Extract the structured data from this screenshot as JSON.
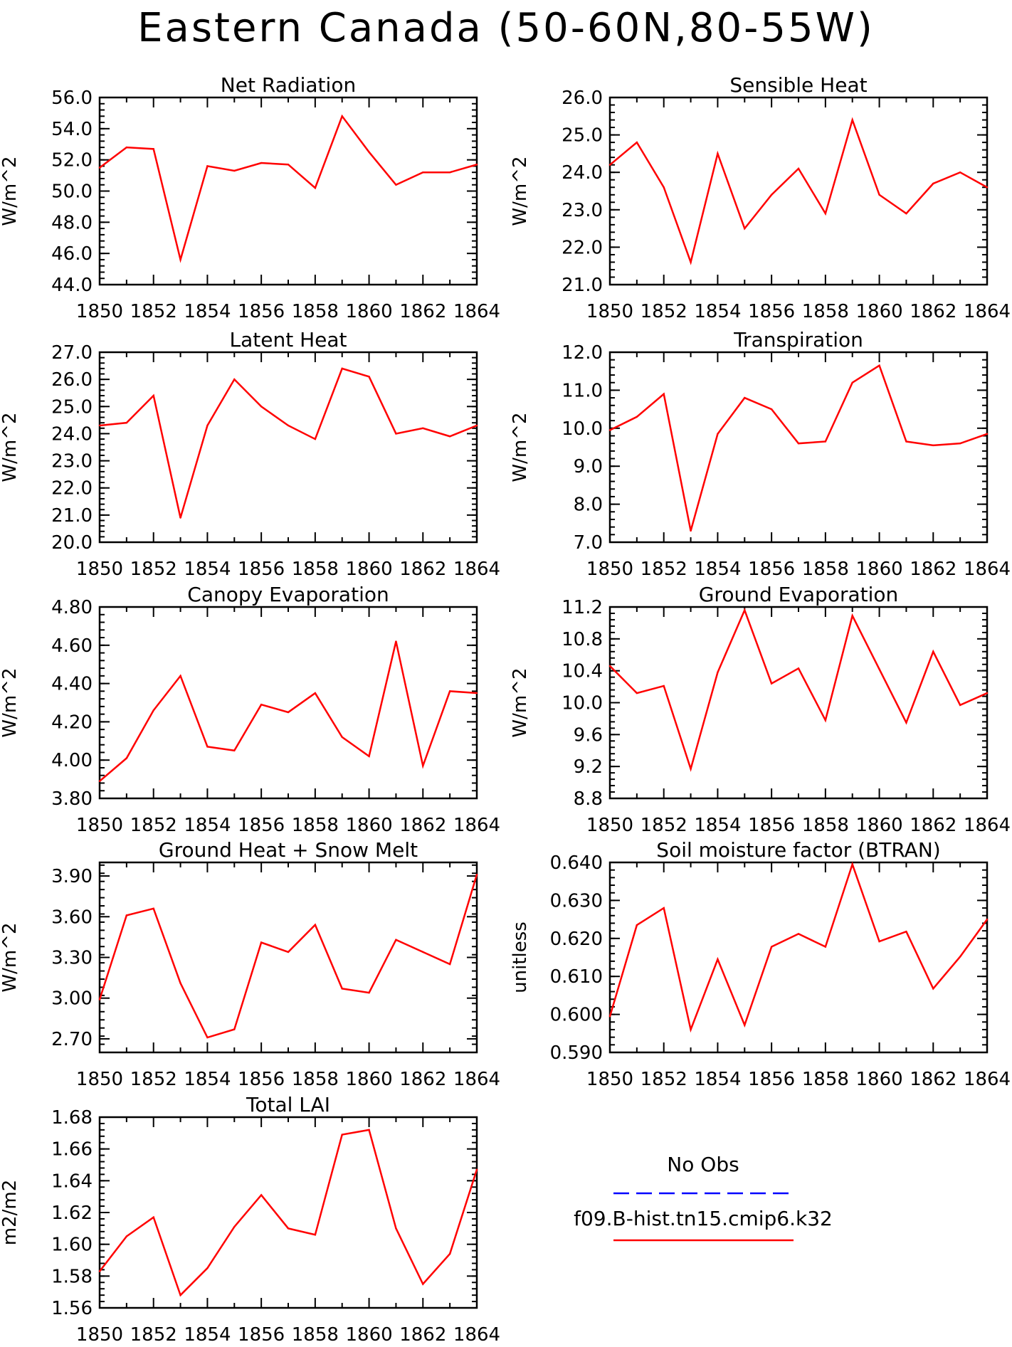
{
  "title": "Eastern Canada (50-60N,80-55W)",
  "legend": {
    "obs_label": "No Obs",
    "model_label": "f09.B-hist.tn15.cmip6.k32",
    "obs_color": "#0000ff",
    "model_color": "#ff0000"
  },
  "chart_data": [
    {
      "type": "line",
      "title": "Net Radiation",
      "ylabel": "W/m^2",
      "x": [
        1850,
        1851,
        1852,
        1853,
        1854,
        1855,
        1856,
        1857,
        1858,
        1859,
        1860,
        1861,
        1862,
        1863,
        1864
      ],
      "series": [
        {
          "name": "f09.B-hist.tn15.cmip6.k32",
          "color": "#ff0000",
          "values": [
            51.5,
            52.8,
            52.7,
            45.6,
            51.6,
            51.3,
            51.8,
            51.7,
            50.2,
            54.8,
            52.5,
            50.4,
            51.2,
            51.2,
            51.7
          ]
        }
      ],
      "xlim": [
        1850,
        1864
      ],
      "ylim": [
        44.0,
        56.0
      ],
      "yticks": [
        "44.0",
        "46.0",
        "48.0",
        "50.0",
        "52.0",
        "54.0",
        "56.0"
      ],
      "xticks": [
        "1850",
        "1852",
        "1854",
        "1856",
        "1858",
        "1860",
        "1862",
        "1864"
      ],
      "grid": false
    },
    {
      "type": "line",
      "title": "Sensible Heat",
      "ylabel": "W/m^2",
      "x": [
        1850,
        1851,
        1852,
        1853,
        1854,
        1855,
        1856,
        1857,
        1858,
        1859,
        1860,
        1861,
        1862,
        1863,
        1864
      ],
      "series": [
        {
          "name": "f09.B-hist.tn15.cmip6.k32",
          "color": "#ff0000",
          "values": [
            24.2,
            24.8,
            23.6,
            21.6,
            24.5,
            22.5,
            23.4,
            24.1,
            22.9,
            25.4,
            23.4,
            22.9,
            23.7,
            24.0,
            23.6
          ]
        }
      ],
      "xlim": [
        1850,
        1864
      ],
      "ylim": [
        21.0,
        26.0
      ],
      "yticks": [
        "21.0",
        "22.0",
        "23.0",
        "24.0",
        "25.0",
        "26.0"
      ],
      "xticks": [
        "1850",
        "1852",
        "1854",
        "1856",
        "1858",
        "1860",
        "1862",
        "1864"
      ],
      "grid": false
    },
    {
      "type": "line",
      "title": "Latent Heat",
      "ylabel": "W/m^2",
      "x": [
        1850,
        1851,
        1852,
        1853,
        1854,
        1855,
        1856,
        1857,
        1858,
        1859,
        1860,
        1861,
        1862,
        1863,
        1864
      ],
      "series": [
        {
          "name": "f09.B-hist.tn15.cmip6.k32",
          "color": "#ff0000",
          "values": [
            24.3,
            24.4,
            25.4,
            20.9,
            24.3,
            26.0,
            25.0,
            24.3,
            23.8,
            26.4,
            26.1,
            24.0,
            24.2,
            23.9,
            24.3
          ]
        }
      ],
      "xlim": [
        1850,
        1864
      ],
      "ylim": [
        20.0,
        27.0
      ],
      "yticks": [
        "20.0",
        "21.0",
        "22.0",
        "23.0",
        "24.0",
        "25.0",
        "26.0",
        "27.0"
      ],
      "xticks": [
        "1850",
        "1852",
        "1854",
        "1856",
        "1858",
        "1860",
        "1862",
        "1864"
      ],
      "grid": false
    },
    {
      "type": "line",
      "title": "Transpiration",
      "ylabel": "W/m^2",
      "x": [
        1850,
        1851,
        1852,
        1853,
        1854,
        1855,
        1856,
        1857,
        1858,
        1859,
        1860,
        1861,
        1862,
        1863,
        1864
      ],
      "series": [
        {
          "name": "f09.B-hist.tn15.cmip6.k32",
          "color": "#ff0000",
          "values": [
            9.95,
            10.3,
            10.9,
            7.3,
            9.85,
            10.8,
            10.5,
            9.6,
            9.65,
            11.2,
            11.65,
            9.65,
            9.55,
            9.6,
            9.85
          ]
        }
      ],
      "xlim": [
        1850,
        1864
      ],
      "ylim": [
        7.0,
        12.0
      ],
      "yticks": [
        "7.0",
        "8.0",
        "9.0",
        "10.0",
        "11.0",
        "12.0"
      ],
      "xticks": [
        "1850",
        "1852",
        "1854",
        "1856",
        "1858",
        "1860",
        "1862",
        "1864"
      ],
      "grid": false
    },
    {
      "type": "line",
      "title": "Canopy Evaporation",
      "ylabel": "W/m^2",
      "x": [
        1850,
        1851,
        1852,
        1853,
        1854,
        1855,
        1856,
        1857,
        1858,
        1859,
        1860,
        1861,
        1862,
        1863,
        1864
      ],
      "series": [
        {
          "name": "f09.B-hist.tn15.cmip6.k32",
          "color": "#ff0000",
          "values": [
            3.89,
            4.01,
            4.26,
            4.44,
            4.07,
            4.05,
            4.29,
            4.25,
            4.35,
            4.12,
            4.02,
            4.62,
            3.97,
            4.36,
            4.35
          ]
        }
      ],
      "xlim": [
        1850,
        1864
      ],
      "ylim": [
        3.8,
        4.8
      ],
      "yticks": [
        "3.80",
        "4.00",
        "4.20",
        "4.40",
        "4.60",
        "4.80"
      ],
      "xticks": [
        "1850",
        "1852",
        "1854",
        "1856",
        "1858",
        "1860",
        "1862",
        "1864"
      ],
      "grid": false
    },
    {
      "type": "line",
      "title": "Ground Evaporation",
      "ylabel": "W/m^2",
      "x": [
        1850,
        1851,
        1852,
        1853,
        1854,
        1855,
        1856,
        1857,
        1858,
        1859,
        1860,
        1861,
        1862,
        1863,
        1864
      ],
      "series": [
        {
          "name": "f09.B-hist.tn15.cmip6.k32",
          "color": "#ff0000",
          "values": [
            10.46,
            10.12,
            10.21,
            9.17,
            10.38,
            11.16,
            10.24,
            10.43,
            9.78,
            11.09,
            10.42,
            9.75,
            10.64,
            9.97,
            10.12
          ]
        }
      ],
      "xlim": [
        1850,
        1864
      ],
      "ylim": [
        8.8,
        11.2
      ],
      "yticks": [
        "8.8",
        "9.2",
        "9.6",
        "10.0",
        "10.4",
        "10.8",
        "11.2"
      ],
      "xticks": [
        "1850",
        "1852",
        "1854",
        "1856",
        "1858",
        "1860",
        "1862",
        "1864"
      ],
      "grid": false
    },
    {
      "type": "line",
      "title": "Ground Heat + Snow Melt",
      "ylabel": "W/m^2",
      "x": [
        1850,
        1851,
        1852,
        1853,
        1854,
        1855,
        1856,
        1857,
        1858,
        1859,
        1860,
        1861,
        1862,
        1863,
        1864
      ],
      "series": [
        {
          "name": "f09.B-hist.tn15.cmip6.k32",
          "color": "#ff0000",
          "values": [
            2.99,
            3.61,
            3.66,
            3.11,
            2.71,
            2.77,
            3.41,
            3.34,
            3.54,
            3.07,
            3.04,
            3.43,
            3.34,
            3.25,
            3.91
          ]
        }
      ],
      "xlim": [
        1850,
        1864
      ],
      "ylim": [
        2.6,
        4.0
      ],
      "yticks": [
        "2.70",
        "3.00",
        "3.30",
        "3.60",
        "3.90"
      ],
      "xticks": [
        "1850",
        "1852",
        "1854",
        "1856",
        "1858",
        "1860",
        "1862",
        "1864"
      ],
      "grid": false
    },
    {
      "type": "line",
      "title": "Soil moisture factor (BTRAN)",
      "ylabel": "unitless",
      "x": [
        1850,
        1851,
        1852,
        1853,
        1854,
        1855,
        1856,
        1857,
        1858,
        1859,
        1860,
        1861,
        1862,
        1863,
        1864
      ],
      "series": [
        {
          "name": "f09.B-hist.tn15.cmip6.k32",
          "color": "#ff0000",
          "values": [
            0.5995,
            0.6235,
            0.628,
            0.596,
            0.6145,
            0.5972,
            0.6178,
            0.6212,
            0.6178,
            0.6395,
            0.6192,
            0.6218,
            0.6068,
            0.6152,
            0.625
          ]
        }
      ],
      "xlim": [
        1850,
        1864
      ],
      "ylim": [
        0.59,
        0.64
      ],
      "yticks": [
        "0.590",
        "0.600",
        "0.610",
        "0.620",
        "0.630",
        "0.640"
      ],
      "xticks": [
        "1850",
        "1852",
        "1854",
        "1856",
        "1858",
        "1860",
        "1862",
        "1864"
      ],
      "grid": false
    },
    {
      "type": "line",
      "title": "Total LAI",
      "ylabel": "m2/m2",
      "x": [
        1850,
        1851,
        1852,
        1853,
        1854,
        1855,
        1856,
        1857,
        1858,
        1859,
        1860,
        1861,
        1862,
        1863,
        1864
      ],
      "series": [
        {
          "name": "f09.B-hist.tn15.cmip6.k32",
          "color": "#ff0000",
          "values": [
            1.583,
            1.605,
            1.617,
            1.568,
            1.585,
            1.611,
            1.631,
            1.61,
            1.606,
            1.669,
            1.672,
            1.61,
            1.575,
            1.594,
            1.647
          ]
        }
      ],
      "xlim": [
        1850,
        1864
      ],
      "ylim": [
        1.56,
        1.68
      ],
      "yticks": [
        "1.56",
        "1.58",
        "1.60",
        "1.62",
        "1.64",
        "1.66",
        "1.68"
      ],
      "xticks": [
        "1850",
        "1852",
        "1854",
        "1856",
        "1858",
        "1860",
        "1862",
        "1864"
      ],
      "grid": false
    }
  ]
}
